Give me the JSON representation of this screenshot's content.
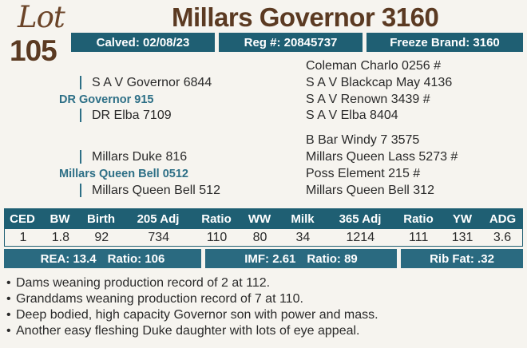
{
  "lot": {
    "label": "Lot",
    "number": "105"
  },
  "title": "Millars Governor 3160",
  "info": {
    "calved": "Calved: 02/08/23",
    "reg": "Reg #: 20845737",
    "freeze_brand": "Freeze Brand: 3160"
  },
  "pedigree": {
    "sire": "DR Governor 915",
    "sire_sire": "S A V Governor 6844",
    "sire_dam": "DR Elba 7109",
    "sss": "Coleman Charlo 0256 #",
    "ssd": "S A V Blackcap May 4136",
    "sds": "S A V Renown 3439 #",
    "sdd": "S A V Elba 8404",
    "dam": "Millars Queen Bell 0512",
    "dam_sire": "Millars Duke 816",
    "dam_dam": "Millars Queen Bell 512",
    "dss": "B Bar Windy 7 3575",
    "dsd": "Millars Queen Lass 5273 #",
    "dds": "Poss Element 215 #",
    "ddd": "Millars Queen Bell 312"
  },
  "performance": {
    "headers": [
      "CED",
      "BW",
      "Birth",
      "205 Adj",
      "Ratio",
      "WW",
      "Milk",
      "365 Adj",
      "Ratio",
      "YW",
      "ADG"
    ],
    "values": [
      "1",
      "1.8",
      "92",
      "734",
      "110",
      "80",
      "34",
      "1214",
      "111",
      "131",
      "3.6"
    ]
  },
  "carcass": {
    "rea": "REA: 13.4",
    "rea_ratio": "Ratio: 106",
    "imf": "IMF: 2.61",
    "imf_ratio": "Ratio: 89",
    "rib_fat": "Rib Fat: .32"
  },
  "notes": [
    "Dams weaning production record of 2 at 112.",
    "Granddams weaning production record of 7 at 110.",
    "Deep bodied, high capacity Governor son with power and mass.",
    "Another easy fleshing Duke daughter with lots of eye appeal."
  ],
  "colors": {
    "brown": "#5b3a22",
    "teal": "#1f5f73",
    "link_teal": "#2d6f86"
  }
}
